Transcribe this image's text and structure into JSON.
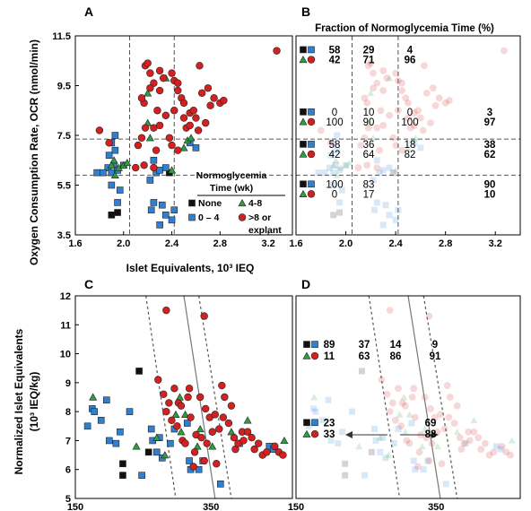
{
  "palette": {
    "none": "#111111",
    "blue": "#2f80d0",
    "green": "#2e9e3e",
    "red": "#d42020",
    "frame": "#000000",
    "dash": "#555555",
    "curve": "#777777"
  },
  "shared": {
    "ylabel_top": "Oxygen Consumption Rate, OCR (nmol/min)",
    "xlabel_top": "Islet Equivalents, 10³ IEQ",
    "ylabel_bottom_line1": "Normalized Islet Equivalents",
    "ylabel_bottom_line2": "(10³ IEQ/kg)"
  },
  "chart_data": [
    {
      "panel": "A",
      "type": "scatter",
      "xlim": [
        1.6,
        3.4
      ],
      "ylim": [
        3.5,
        11.5
      ],
      "xticks": [
        "1.6",
        "2.0",
        "2.4",
        "2.8",
        "3.2"
      ],
      "yticks": [
        "3.5",
        "5.5",
        "7.5",
        "9.5",
        "11.5"
      ],
      "vlines": [
        2.05,
        2.42
      ],
      "hlines": [
        7.35,
        5.9
      ],
      "legend": {
        "title_line1": "Normoglycemia",
        "title_line2": "Time (wk)",
        "items": [
          {
            "label": "None",
            "shape": "square",
            "color": "none"
          },
          {
            "label": "4-8",
            "shape": "triangle",
            "color": "green"
          },
          {
            "label": "0 – 4",
            "shape": "square",
            "color": "blue"
          },
          {
            "label": ">8 or explant",
            "shape": "circle",
            "color": "red"
          }
        ]
      },
      "series": [
        {
          "name": "None",
          "shape": "square",
          "color": "none",
          "points": [
            [
              1.9,
              4.3
            ],
            [
              1.95,
              4.4
            ],
            [
              2.38,
              6.0
            ]
          ]
        },
        {
          "name": "0 – 4",
          "shape": "square",
          "color": "blue",
          "points": [
            [
              1.78,
              6.0
            ],
            [
              1.87,
              6.2
            ],
            [
              1.9,
              6.0
            ],
            [
              1.92,
              6.3
            ],
            [
              1.95,
              6.1
            ],
            [
              1.88,
              6.7
            ],
            [
              1.93,
              6.9
            ],
            [
              1.9,
              7.2
            ],
            [
              1.93,
              7.5
            ],
            [
              1.9,
              5.5
            ],
            [
              1.97,
              5.3
            ],
            [
              1.95,
              4.8
            ],
            [
              2.0,
              6.3
            ],
            [
              2.25,
              6.5
            ],
            [
              2.27,
              6.0
            ],
            [
              2.3,
              6.1
            ],
            [
              2.35,
              6.2
            ],
            [
              2.22,
              5.7
            ],
            [
              2.25,
              4.8
            ],
            [
              2.23,
              4.5
            ],
            [
              2.32,
              4.7
            ],
            [
              2.35,
              4.3
            ],
            [
              2.42,
              4.5
            ],
            [
              2.3,
              3.9
            ],
            [
              2.4,
              4.1
            ],
            [
              2.55,
              7.2
            ],
            [
              2.6,
              7.0
            ],
            [
              1.83,
              6.0
            ]
          ]
        },
        {
          "name": "4-8",
          "shape": "triangle",
          "color": "green",
          "points": [
            [
              1.92,
              6.5
            ],
            [
              1.9,
              6.3
            ],
            [
              1.96,
              6.2
            ],
            [
              2.0,
              6.3
            ],
            [
              1.93,
              5.9
            ],
            [
              2.03,
              6.4
            ],
            [
              2.2,
              8.0
            ],
            [
              2.22,
              7.4
            ],
            [
              2.2,
              9.2
            ],
            [
              2.35,
              9.8
            ],
            [
              2.4,
              6.1
            ],
            [
              2.5,
              7.0
            ],
            [
              2.53,
              7.3
            ],
            [
              2.56,
              7.4
            ]
          ]
        },
        {
          "name": ">8 or explant",
          "shape": "circle",
          "color": "red",
          "points": [
            [
              1.8,
              7.7
            ],
            [
              1.88,
              7.2
            ],
            [
              2.1,
              6.2
            ],
            [
              2.12,
              7.1
            ],
            [
              2.15,
              7.4
            ],
            [
              2.18,
              7.8
            ],
            [
              2.17,
              8.8
            ],
            [
              2.15,
              9.0
            ],
            [
              2.18,
              10.3
            ],
            [
              2.2,
              10.4
            ],
            [
              2.22,
              10.0
            ],
            [
              2.25,
              9.6
            ],
            [
              2.25,
              7.8
            ],
            [
              2.3,
              7.9
            ],
            [
              2.28,
              8.5
            ],
            [
              2.3,
              10.1
            ],
            [
              2.33,
              9.8
            ],
            [
              2.35,
              8.3
            ],
            [
              2.38,
              7.4
            ],
            [
              2.4,
              7.1
            ],
            [
              2.42,
              9.7
            ],
            [
              2.42,
              8.5
            ],
            [
              2.4,
              10.0
            ],
            [
              2.45,
              9.6
            ],
            [
              2.45,
              9.3
            ],
            [
              2.48,
              9.0
            ],
            [
              2.5,
              8.8
            ],
            [
              2.5,
              8.2
            ],
            [
              2.52,
              7.8
            ],
            [
              2.55,
              8.4
            ],
            [
              2.55,
              7.9
            ],
            [
              2.58,
              8.5
            ],
            [
              2.6,
              8.2
            ],
            [
              2.62,
              7.7
            ],
            [
              2.63,
              10.3
            ],
            [
              2.65,
              9.2
            ],
            [
              2.68,
              8.0
            ],
            [
              2.7,
              9.4
            ],
            [
              2.72,
              8.7
            ],
            [
              2.75,
              9.0
            ],
            [
              2.8,
              8.8
            ],
            [
              2.83,
              8.9
            ],
            [
              2.45,
              6.9
            ],
            [
              2.27,
              6.9
            ],
            [
              2.25,
              6.2
            ],
            [
              2.17,
              6.3
            ],
            [
              2.3,
              9.3
            ],
            [
              2.22,
              9.4
            ],
            [
              3.27,
              10.9
            ]
          ]
        }
      ]
    },
    {
      "panel": "B",
      "type": "table",
      "title": "Fraction of Normoglycemia  Time (%)",
      "xlim": [
        1.6,
        3.4
      ],
      "ylim": [
        3.5,
        11.5
      ],
      "xticks": [
        "1.6",
        "2.0",
        "2.4",
        "2.8",
        "3.2"
      ],
      "vlines": [
        2.05,
        2.42
      ],
      "hlines": [
        7.35,
        5.9
      ],
      "rows": [
        {
          "label_row": "square-black-blue",
          "y": 10.8,
          "values": [
            "58",
            "29",
            "4",
            ""
          ],
          "bold": true
        },
        {
          "label_row": "triangle-circle",
          "y": 10.4,
          "values": [
            "42",
            "71",
            "96",
            ""
          ],
          "bold": true
        },
        {
          "label_row": "square-black-blue",
          "y": 8.3,
          "values": [
            "0",
            "10",
            "0",
            "3"
          ],
          "bold": false,
          "bold_last": true
        },
        {
          "label_row": "triangle-circle",
          "y": 7.9,
          "values": [
            "100",
            "90",
            "100",
            "97"
          ],
          "bold": false,
          "bold_last": true
        },
        {
          "label_row": "square-black-blue",
          "y": 7.0,
          "values": [
            "58",
            "36",
            "18",
            "38"
          ],
          "bold": false,
          "bold_last": true
        },
        {
          "label_row": "triangle-circle",
          "y": 6.6,
          "values": [
            "42",
            "64",
            "82",
            "62"
          ],
          "bold": false,
          "bold_last": true
        },
        {
          "label_row": "square-black-blue",
          "y": 5.4,
          "values": [
            "100",
            "83",
            "",
            "90"
          ],
          "bold": false,
          "bold_last": true
        },
        {
          "label_row": "triangle-circle",
          "y": 5.0,
          "values": [
            "0",
            "17",
            "",
            "10"
          ],
          "bold": false,
          "bold_last": true
        }
      ]
    },
    {
      "panel": "C",
      "type": "scatter",
      "xlim": [
        150,
        470
      ],
      "ylim": [
        5,
        12
      ],
      "xticks": [
        "150",
        "350"
      ],
      "yticks": [
        "5",
        "6",
        "7",
        "8",
        "9",
        "10",
        "11",
        "12"
      ],
      "series": [
        {
          "name": "None",
          "shape": "square",
          "color": "none",
          "points": [
            [
              220,
              6.2
            ],
            [
              220,
              5.8
            ],
            [
              244,
              9.4
            ],
            [
              258,
              6.6
            ]
          ]
        },
        {
          "name": "0 – 4",
          "shape": "square",
          "color": "blue",
          "points": [
            [
              168,
              7.5
            ],
            [
              175,
              8.1
            ],
            [
              178,
              8.0
            ],
            [
              188,
              7.7
            ],
            [
              196,
              8.4
            ],
            [
              200,
              7.0
            ],
            [
              210,
              6.9
            ],
            [
              216,
              7.3
            ],
            [
              230,
              8.0
            ],
            [
              248,
              5.8
            ],
            [
              262,
              7.4
            ],
            [
              264,
              7.0
            ],
            [
              270,
              6.6
            ],
            [
              274,
              7.1
            ],
            [
              278,
              6.4
            ],
            [
              290,
              6.9
            ],
            [
              296,
              7.4
            ],
            [
              315,
              7.6
            ],
            [
              318,
              6.3
            ],
            [
              320,
              6.0
            ],
            [
              332,
              6.0
            ],
            [
              338,
              6.3
            ],
            [
              364,
              5.5
            ],
            [
              392,
              6.9
            ],
            [
              436,
              6.8
            ],
            [
              442,
              6.7
            ]
          ]
        },
        {
          "name": "4-8",
          "shape": "triangle",
          "color": "green",
          "points": [
            [
              176,
              8.5
            ],
            [
              240,
              6.8
            ],
            [
              270,
              7.1
            ],
            [
              282,
              6.5
            ],
            [
              298,
              7.9
            ],
            [
              304,
              8.5
            ],
            [
              306,
              7.3
            ],
            [
              312,
              7.9
            ],
            [
              330,
              6.8
            ],
            [
              334,
              7.4
            ],
            [
              352,
              6.8
            ],
            [
              380,
              7.3
            ],
            [
              404,
              7.7
            ],
            [
              458,
              7.0
            ]
          ]
        },
        {
          "name": ">8 or explant",
          "shape": "circle",
          "color": "red",
          "points": [
            [
              284,
              11.5
            ],
            [
              272,
              9.1
            ],
            [
              280,
              8.6
            ],
            [
              284,
              8.0
            ],
            [
              288,
              8.3
            ],
            [
              292,
              7.7
            ],
            [
              296,
              8.8
            ],
            [
              300,
              7.5
            ],
            [
              302,
              8.3
            ],
            [
              306,
              8.2
            ],
            [
              308,
              7.0
            ],
            [
              312,
              6.9
            ],
            [
              316,
              8.5
            ],
            [
              318,
              8.8
            ],
            [
              320,
              7.8
            ],
            [
              324,
              6.1
            ],
            [
              326,
              6.6
            ],
            [
              328,
              7.2
            ],
            [
              334,
              8.5
            ],
            [
              336,
              7.1
            ],
            [
              340,
              6.3
            ],
            [
              340,
              11.3
            ],
            [
              342,
              8.1
            ],
            [
              344,
              6.9
            ],
            [
              348,
              7.8
            ],
            [
              352,
              7.3
            ],
            [
              356,
              7.9
            ],
            [
              358,
              6.2
            ],
            [
              362,
              7.4
            ],
            [
              366,
              8.9
            ],
            [
              368,
              7.8
            ],
            [
              370,
              8.5
            ],
            [
              376,
              7.6
            ],
            [
              380,
              8.2
            ],
            [
              384,
              7.1
            ],
            [
              386,
              6.7
            ],
            [
              390,
              6.9
            ],
            [
              396,
              7.3
            ],
            [
              398,
              7.0
            ],
            [
              404,
              7.3
            ],
            [
              410,
              7.1
            ],
            [
              414,
              6.7
            ],
            [
              420,
              6.9
            ],
            [
              426,
              6.5
            ],
            [
              432,
              6.6
            ],
            [
              444,
              6.8
            ],
            [
              450,
              6.6
            ],
            [
              456,
              6.5
            ]
          ]
        }
      ]
    },
    {
      "panel": "D",
      "type": "table",
      "xlim": [
        150,
        470
      ],
      "ylim": [
        5,
        12
      ],
      "xticks": [
        "150",
        "350"
      ],
      "rows": [
        {
          "label_row": "square-black-blue",
          "y": 10.2,
          "values": [
            "89",
            "37",
            "14",
            "9"
          ],
          "bold": true
        },
        {
          "label_row": "triangle-circle",
          "y": 9.8,
          "values": [
            "11",
            "63",
            "86",
            "91"
          ],
          "bold": true
        },
        {
          "label_row": "square-black-blue",
          "y": 7.5,
          "values": [
            "23",
            "",
            "",
            "69"
          ],
          "bold": true
        },
        {
          "label_row": "triangle-circle",
          "y": 7.1,
          "values": [
            "33",
            "",
            "",
            "88"
          ],
          "bold": true
        }
      ]
    }
  ]
}
